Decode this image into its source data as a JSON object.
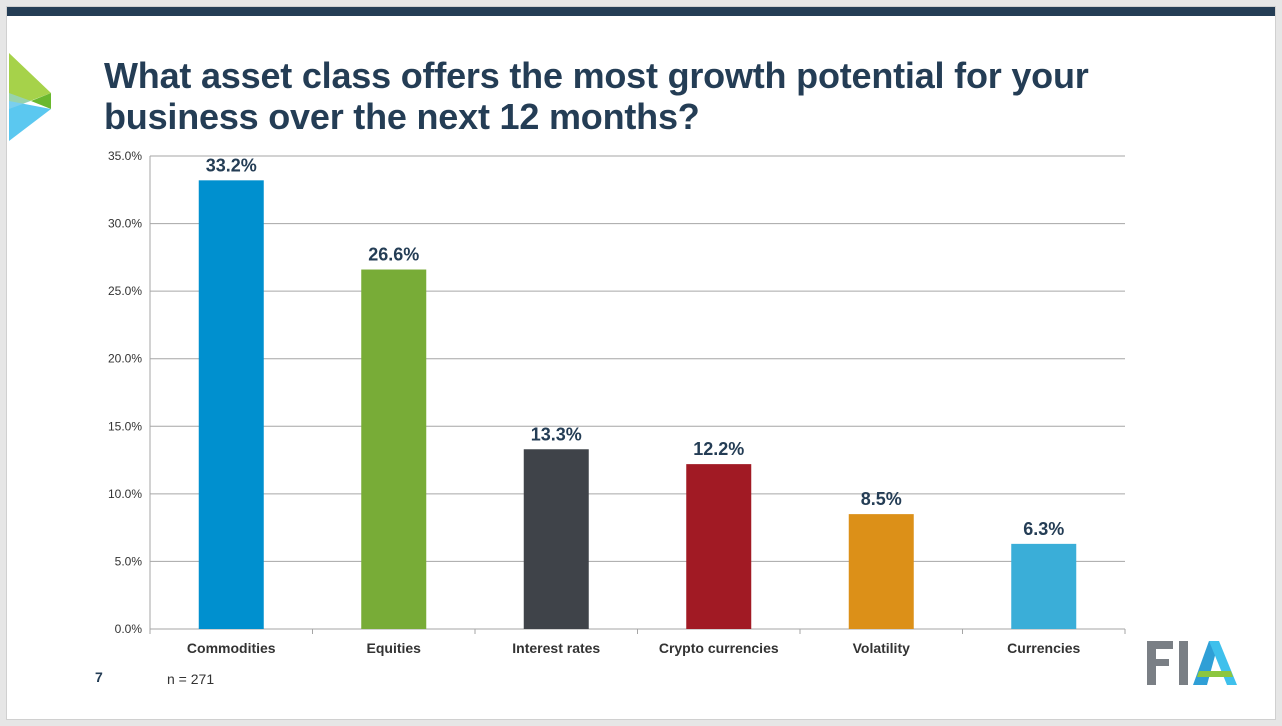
{
  "slide": {
    "title": "What asset class offers the most growth potential for your business over the next 12 months?",
    "slide_number": "7",
    "sample_note": "n = 271",
    "logo_text": "FIA"
  },
  "colors": {
    "top_bar": "#243d55",
    "title": "#243d55",
    "grid": "#a6a6a6",
    "axis_text": "#333333",
    "label_text": "#243d55"
  },
  "chart_data": {
    "type": "bar",
    "title": "",
    "xlabel": "",
    "ylabel": "",
    "categories": [
      "Commodities",
      "Equities",
      "Interest rates",
      "Crypto currencies",
      "Volatility",
      "Currencies"
    ],
    "values": [
      33.2,
      26.6,
      13.3,
      12.2,
      8.5,
      6.3
    ],
    "value_labels": [
      "33.2%",
      "26.6%",
      "13.3%",
      "12.2%",
      "8.5%",
      "6.3%"
    ],
    "bar_colors": [
      "#0090cf",
      "#78ac37",
      "#3f4349",
      "#a11a24",
      "#dc9018",
      "#3aaed8"
    ],
    "ylim": [
      0,
      35
    ],
    "yticks": [
      0,
      5,
      10,
      15,
      20,
      25,
      30,
      35
    ],
    "ytick_labels": [
      "0.0%",
      "5.0%",
      "10.0%",
      "15.0%",
      "20.0%",
      "25.0%",
      "30.0%",
      "35.0%"
    ],
    "grid": true,
    "legend": "none"
  }
}
